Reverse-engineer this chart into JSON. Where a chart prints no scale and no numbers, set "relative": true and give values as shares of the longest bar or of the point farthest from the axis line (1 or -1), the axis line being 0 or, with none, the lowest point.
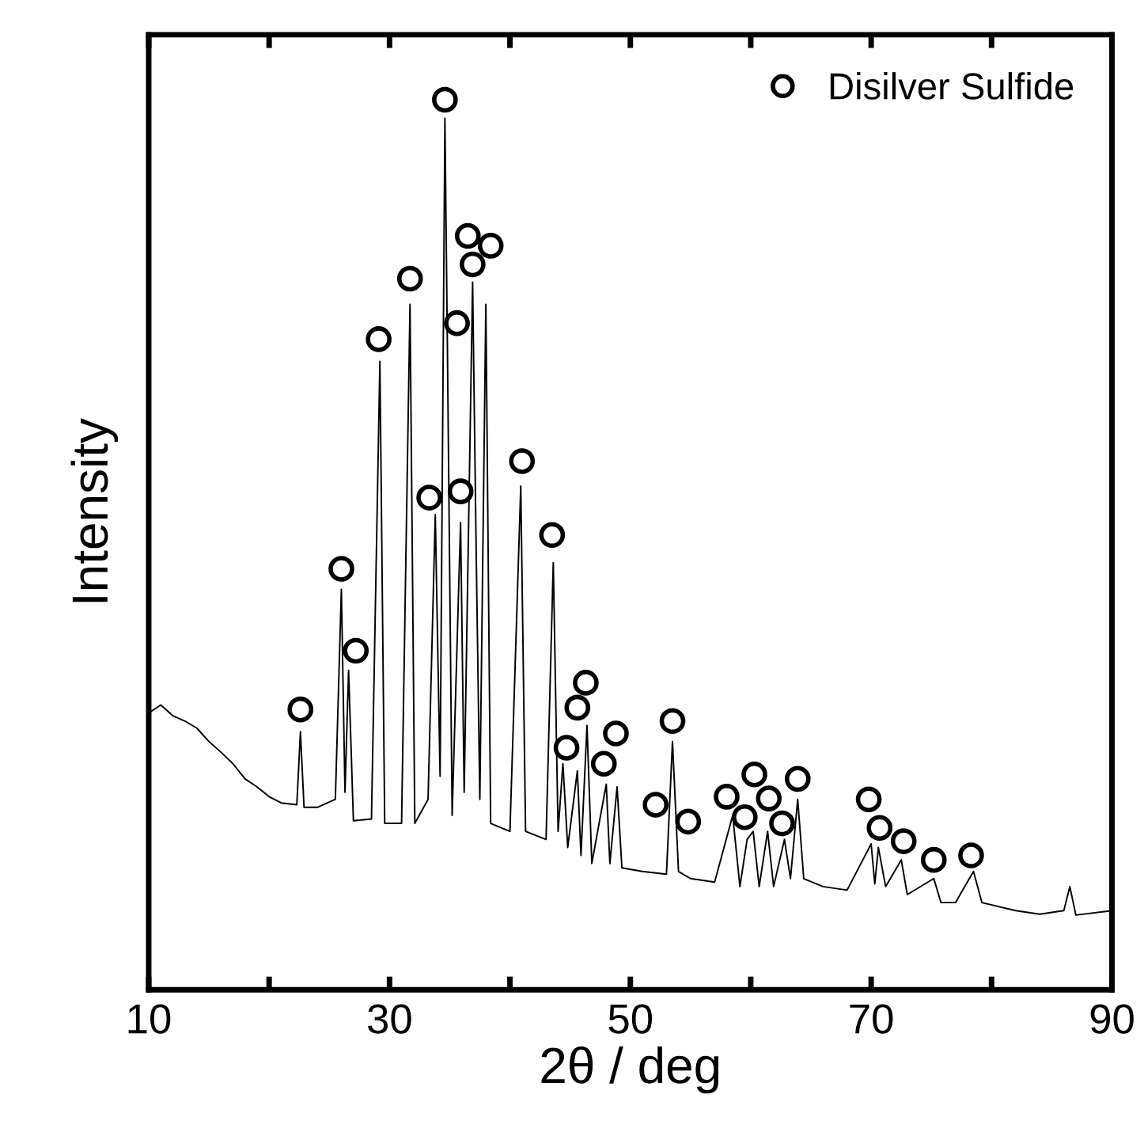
{
  "chart_data": {
    "type": "line",
    "relative": true,
    "xlabel": "2θ / deg",
    "ylabel": "Intensity",
    "xlim": [
      10,
      90
    ],
    "xticks": [
      10,
      {
        "value": 20,
        "label": null
      },
      30,
      {
        "value": 40,
        "label": null
      },
      50,
      {
        "value": 60,
        "label": null
      },
      70,
      {
        "value": 80,
        "label": null
      },
      90
    ],
    "tick_labels": "x",
    "legend": "top right",
    "series": [
      {
        "color": "#000000",
        "marker": "none",
        "x": [
          10,
          11,
          12,
          13,
          14,
          15,
          16,
          17,
          18,
          19,
          20,
          21,
          22.3,
          22.6,
          22.9,
          24,
          25.5,
          26.0,
          26.3,
          26.6,
          27,
          28.5,
          29.2,
          29.6,
          31,
          31.7,
          32.1,
          33.2,
          33.8,
          34.2,
          34.6,
          34.8,
          35.2,
          35.9,
          36.2,
          36.9,
          37.2,
          37.5,
          38.0,
          38.4,
          40,
          40.9,
          41.3,
          43,
          43.6,
          44.0,
          44.4,
          44.8,
          45.6,
          45.9,
          46.4,
          46.8,
          48.0,
          48.3,
          48.9,
          49.3,
          51,
          53,
          53.5,
          54,
          55,
          57,
          58.5,
          59.1,
          59.7,
          60.2,
          60.7,
          61.4,
          61.9,
          62.8,
          63.3,
          63.9,
          64.4,
          66,
          68,
          70.0,
          70.3,
          70.6,
          71.2,
          72.5,
          73,
          75.2,
          75.8,
          77,
          78.5,
          79.2,
          82,
          84,
          86,
          86.5,
          87,
          90
        ],
        "values": [
          0.311,
          0.32,
          0.308,
          0.302,
          0.294,
          0.279,
          0.267,
          0.254,
          0.237,
          0.228,
          0.217,
          0.21,
          0.208,
          0.29,
          0.205,
          0.205,
          0.214,
          0.45,
          0.222,
          0.359,
          0.19,
          0.192,
          0.706,
          0.187,
          0.187,
          0.77,
          0.187,
          0.214,
          0.534,
          0.24,
          0.979,
          0.73,
          0.196,
          0.525,
          0.222,
          0.795,
          0.489,
          0.214,
          0.77,
          0.187,
          0.178,
          0.566,
          0.178,
          0.169,
          0.48,
          0.178,
          0.254,
          0.16,
          0.246,
          0.151,
          0.297,
          0.142,
          0.231,
          0.142,
          0.228,
          0.137,
          0.133,
          0.13,
          0.279,
          0.133,
          0.125,
          0.121,
          0.196,
          0.116,
          0.169,
          0.178,
          0.116,
          0.178,
          0.116,
          0.169,
          0.125,
          0.214,
          0.125,
          0.116,
          0.112,
          0.164,
          0.119,
          0.16,
          0.116,
          0.146,
          0.107,
          0.125,
          0.098,
          0.098,
          0.133,
          0.098,
          0.089,
          0.085,
          0.089,
          0.116,
          0.084,
          0.089
        ]
      },
      {
        "type": "scatter",
        "name": "Disilver Sulfide",
        "color": "#000000",
        "marker": "circle",
        "x": [
          22.6,
          26.0,
          27.2,
          29.1,
          31.7,
          33.3,
          34.6,
          35.6,
          35.9,
          36.5,
          36.9,
          38.4,
          41.0,
          43.5,
          44.7,
          45.6,
          46.3,
          47.8,
          48.8,
          52.1,
          53.5,
          54.8,
          58.0,
          59.5,
          60.3,
          61.5,
          62.6,
          63.9,
          69.8,
          70.7,
          72.7,
          75.2,
          78.3
        ],
        "values": [
          0.315,
          0.473,
          0.381,
          0.731,
          0.799,
          0.553,
          1.0,
          0.749,
          0.56,
          0.847,
          0.815,
          0.836,
          0.594,
          0.511,
          0.272,
          0.317,
          0.345,
          0.254,
          0.288,
          0.208,
          0.302,
          0.189,
          0.217,
          0.194,
          0.242,
          0.215,
          0.187,
          0.237,
          0.214,
          0.182,
          0.167,
          0.146,
          0.151
        ]
      }
    ]
  }
}
